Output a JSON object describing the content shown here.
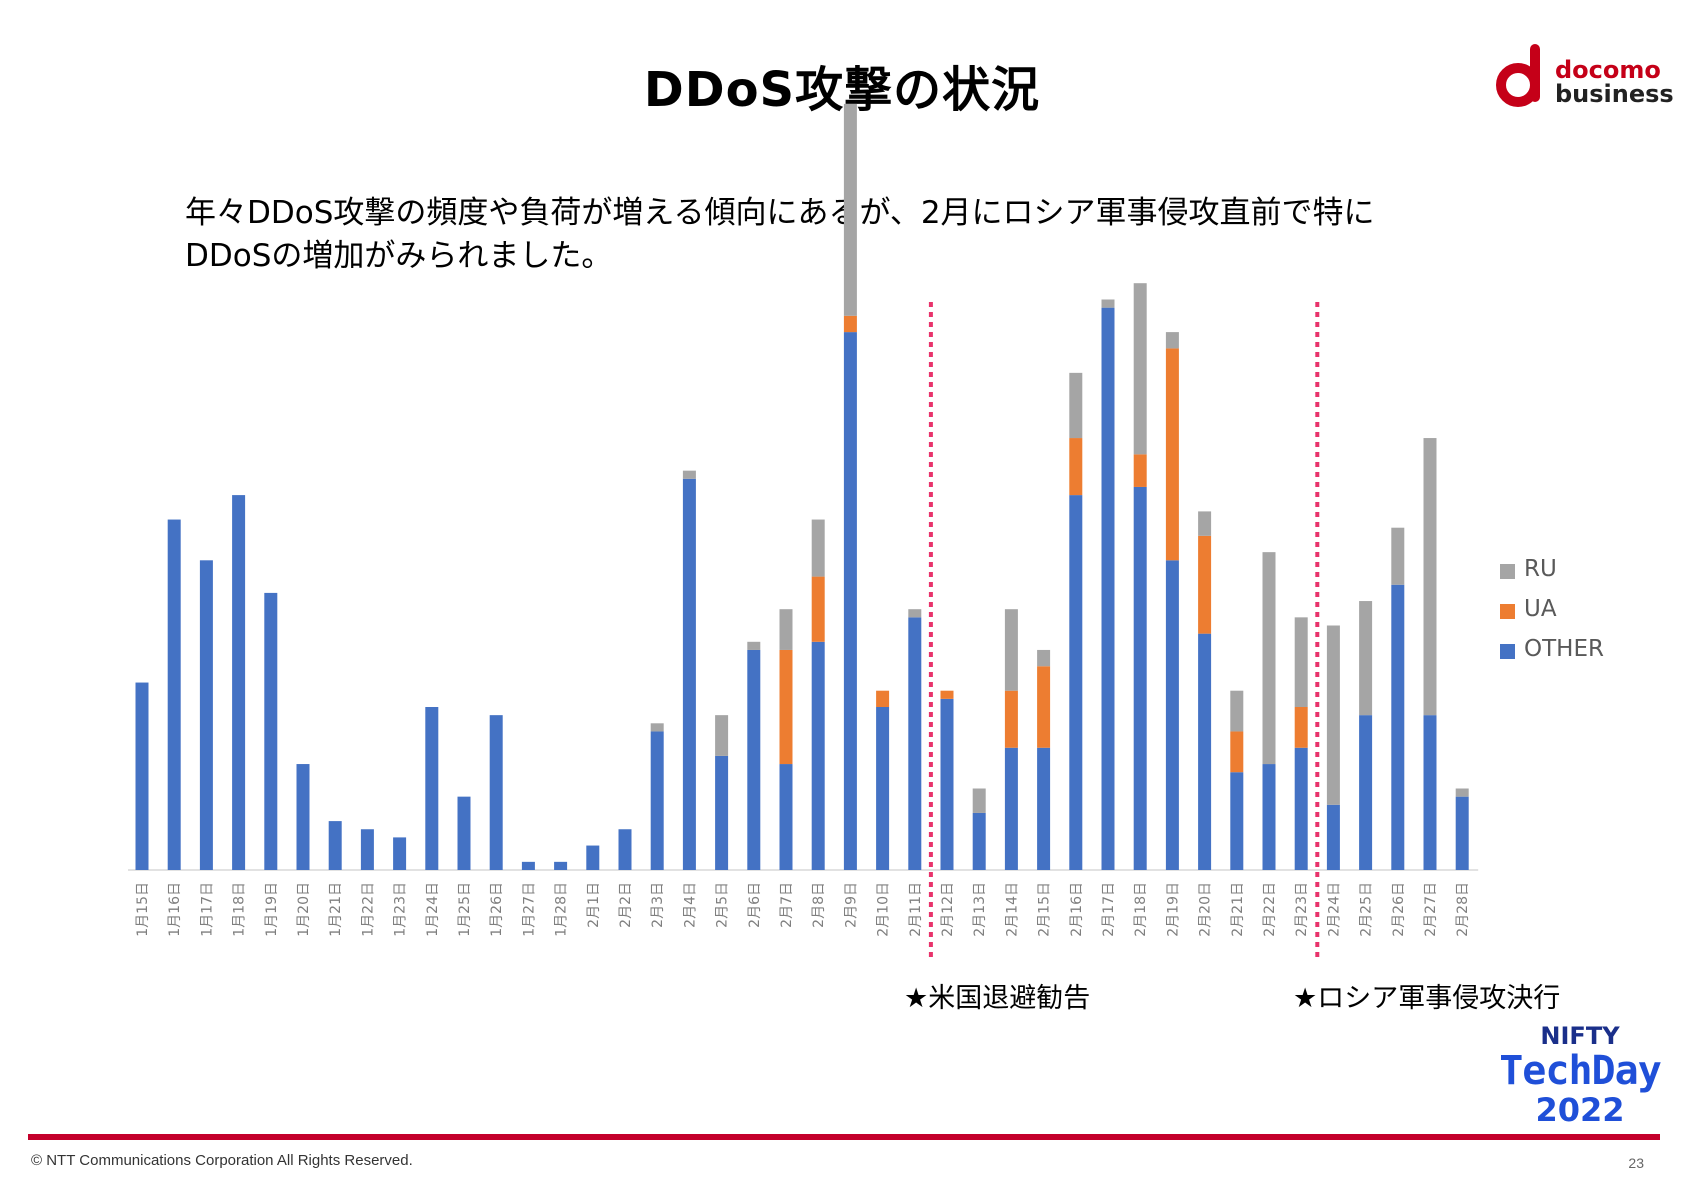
{
  "slide": {
    "title": "DDoS攻撃の状況",
    "subtitle_lines": [
      "年々DDoS攻撃の頻度や負荷が増える傾向にあるが、2月にロシア軍事侵攻直前で特に",
      "DDoSの増加がみられました。"
    ],
    "logo": {
      "line1": "docomo",
      "line2": "business",
      "brand_color": "#c50018"
    },
    "techday": {
      "line1": "NIFTY",
      "line2": "TechDay",
      "line3": "2022"
    },
    "copyright": "© NTT Communications Corporation All Rights Reserved.",
    "page_number": "23",
    "accent_color": "#c4002b"
  },
  "chart_data": {
    "type": "bar",
    "stacked": true,
    "title": "",
    "xlabel": "",
    "ylabel": "",
    "grid": false,
    "legend_position": "right",
    "categories": [
      "1月15日",
      "1月16日",
      "1月17日",
      "1月18日",
      "1月19日",
      "1月20日",
      "1月21日",
      "1月22日",
      "1月23日",
      "1月24日",
      "1月25日",
      "1月26日",
      "1月27日",
      "1月28日",
      "2月1日",
      "2月2日",
      "2月3日",
      "2月4日",
      "2月5日",
      "2月6日",
      "2月7日",
      "2月8日",
      "2月9日",
      "2月10日",
      "2月11日",
      "2月12日",
      "2月13日",
      "2月14日",
      "2月15日",
      "2月16日",
      "2月17日",
      "2月18日",
      "2月19日",
      "2月20日",
      "2月21日",
      "2月22日",
      "2月23日",
      "2月24日",
      "2月25日",
      "2月26日",
      "2月27日",
      "2月28日"
    ],
    "series": [
      {
        "name": "OTHER",
        "color": "#4472c4",
        "values": [
          23,
          43,
          38,
          46,
          34,
          13,
          6,
          5,
          4,
          20,
          9,
          19,
          1,
          1,
          3,
          5,
          17,
          48,
          14,
          27,
          13,
          28,
          66,
          20,
          31,
          21,
          7,
          15,
          15,
          46,
          69,
          47,
          38,
          29,
          12,
          13,
          15,
          8,
          19,
          35,
          19,
          9
        ]
      },
      {
        "name": "UA",
        "color": "#ed7d31",
        "values": [
          0,
          0,
          0,
          0,
          0,
          0,
          0,
          0,
          0,
          0,
          0,
          0,
          0,
          0,
          0,
          0,
          0,
          0,
          0,
          0,
          14,
          8,
          2,
          2,
          0,
          1,
          0,
          7,
          10,
          7,
          0,
          4,
          26,
          12,
          5,
          0,
          5,
          0,
          0,
          0,
          0,
          0
        ]
      },
      {
        "name": "RU",
        "color": "#a5a5a5",
        "values": [
          0,
          0,
          0,
          0,
          0,
          0,
          0,
          0,
          0,
          0,
          0,
          0,
          0,
          0,
          0,
          0,
          1,
          1,
          5,
          1,
          5,
          7,
          26,
          0,
          1,
          0,
          3,
          10,
          2,
          8,
          1,
          21,
          2,
          3,
          5,
          26,
          11,
          22,
          14,
          7,
          34,
          1
        ]
      }
    ],
    "legend": [
      "RU",
      "UA",
      "OTHER"
    ],
    "events": [
      {
        "after_category": "2月11日",
        "label": "★米国退避勧告"
      },
      {
        "after_category": "2月23日",
        "label": "★ロシア軍事侵攻決行"
      }
    ]
  }
}
